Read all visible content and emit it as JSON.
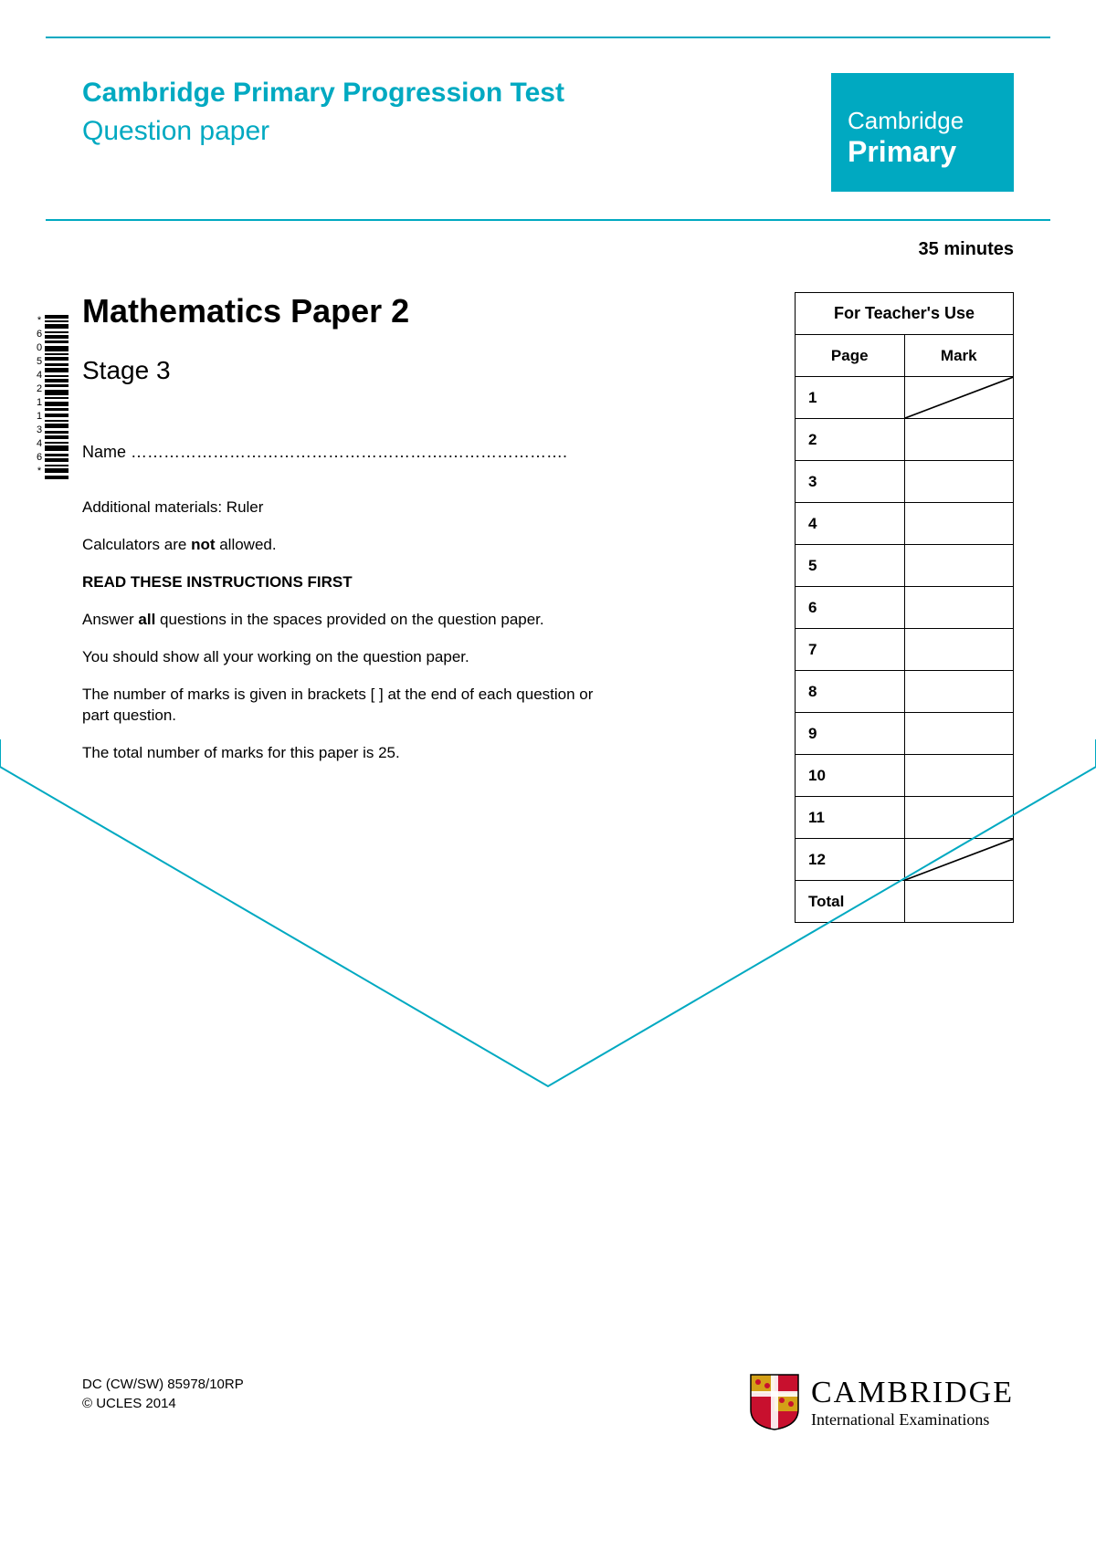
{
  "colors": {
    "accent": "#00a9c1",
    "text": "#000000",
    "white": "#ffffff",
    "shield_red": "#c8102e",
    "shield_gold": "#d4a017"
  },
  "header": {
    "line1": "Cambridge Primary Progression Test",
    "line2": "Question paper",
    "brand_line1": "Cambridge",
    "brand_line2": "Primary"
  },
  "duration": "35 minutes",
  "paper_title": "Mathematics Paper 2",
  "stage": "Stage 3",
  "barcode_digits": "*6054211346*",
  "name_label": "Name ………………………………………………….………………….",
  "instructions": {
    "materials": "Additional materials:  Ruler",
    "calculators_pre": "Calculators are ",
    "calculators_bold": "not",
    "calculators_post": " allowed.",
    "read_first": "READ THESE INSTRUCTIONS FIRST",
    "answer_pre": "Answer ",
    "answer_bold": "all",
    "answer_post": " questions in the spaces provided on the question paper.",
    "working": "You should show all your working on the question paper.",
    "marks": "The number of marks is given in brackets [ ] at the end of each question or part question.",
    "total": "The total number of marks for this paper is 25."
  },
  "teacher_table": {
    "title": "For Teacher's Use",
    "col_page": "Page",
    "col_mark": "Mark",
    "rows": [
      {
        "page": "1",
        "slash": true
      },
      {
        "page": "2",
        "slash": false
      },
      {
        "page": "3",
        "slash": false
      },
      {
        "page": "4",
        "slash": false
      },
      {
        "page": "5",
        "slash": false
      },
      {
        "page": "6",
        "slash": false
      },
      {
        "page": "7",
        "slash": false
      },
      {
        "page": "8",
        "slash": false
      },
      {
        "page": "9",
        "slash": false
      },
      {
        "page": "10",
        "slash": false
      },
      {
        "page": "11",
        "slash": false
      },
      {
        "page": "12",
        "slash": true
      }
    ],
    "total_label": "Total"
  },
  "footer": {
    "code1": "DC (CW/SW) 85978/10RP",
    "code2": "© UCLES 2014",
    "logo_line1": "CAMBRIDGE",
    "logo_line2": "International Examinations"
  }
}
